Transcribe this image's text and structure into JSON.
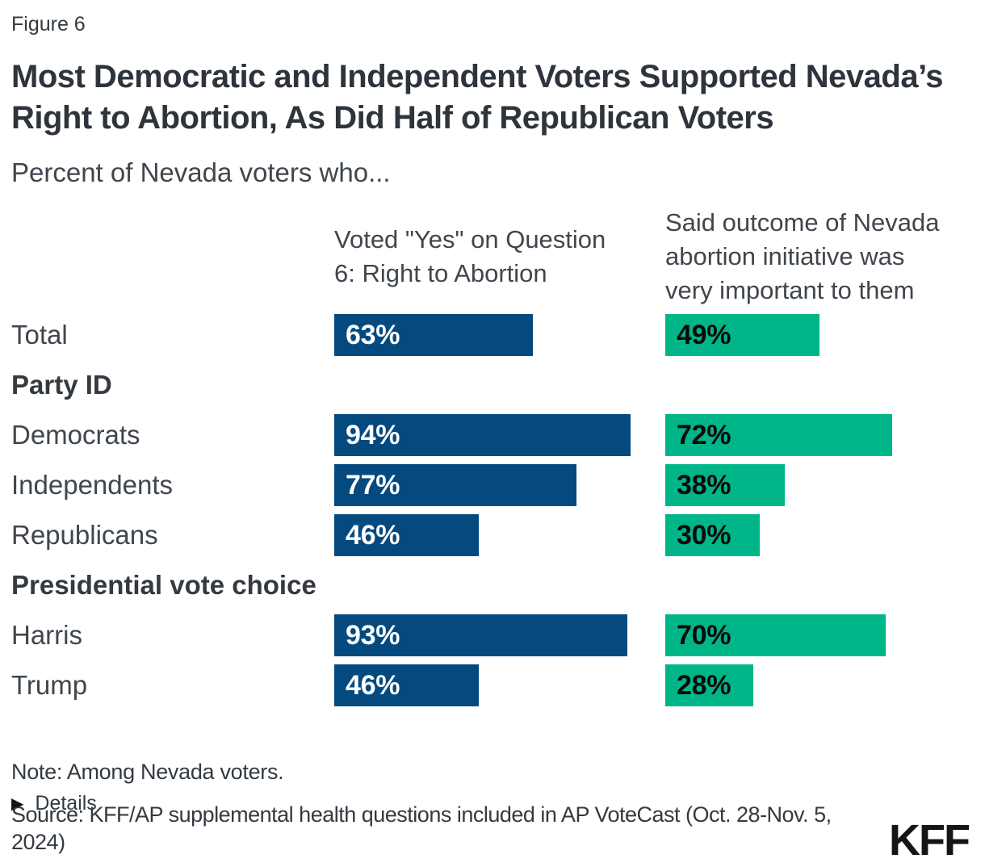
{
  "figure_label": "Figure 6",
  "title": "Most Democratic and Independent Voters Supported Nevada’s\nRight to Abortion, As Did Half of Republican Voters",
  "subtitle": "Percent of Nevada voters who...",
  "columns": [
    {
      "header": "Voted \"Yes\" on Question\n6: Right to Abortion",
      "color": "#044a7f",
      "text_color": "#ffffff"
    },
    {
      "header": "Said outcome of Nevada\nabortion initiative was\nvery important to them",
      "color": "#00b588",
      "text_color": "#0a0a0a"
    }
  ],
  "rows": [
    {
      "type": "data",
      "label": "Total",
      "col1_pct": 63,
      "col1_label": "63%",
      "col2_pct": 49,
      "col2_label": "49%"
    },
    {
      "type": "section",
      "label": "Party ID"
    },
    {
      "type": "data",
      "label": "Democrats",
      "col1_pct": 94,
      "col1_label": "94%",
      "col2_pct": 72,
      "col2_label": "72%"
    },
    {
      "type": "data",
      "label": "Independents",
      "col1_pct": 77,
      "col1_label": "77%",
      "col2_pct": 38,
      "col2_label": "38%"
    },
    {
      "type": "data",
      "label": "Republicans",
      "col1_pct": 46,
      "col1_label": "46%",
      "col2_pct": 30,
      "col2_label": "30%"
    },
    {
      "type": "section",
      "label": "Presidential vote choice"
    },
    {
      "type": "data",
      "label": "Harris",
      "col1_pct": 93,
      "col1_label": "93%",
      "col2_pct": 70,
      "col2_label": "70%"
    },
    {
      "type": "data",
      "label": "Trump",
      "col1_pct": 46,
      "col1_label": "46%",
      "col2_pct": 28,
      "col2_label": "28%"
    }
  ],
  "note": "Note: Among Nevada voters.",
  "details_icon": "▶",
  "details_label": "Details",
  "source": "Source: KFF/AP supplemental health questions included in AP VoteCast (Oct. 28-Nov. 5, 2024)",
  "logo": "KFF",
  "chart_data": {
    "type": "bar",
    "orientation": "horizontal",
    "title": "Most Democratic and Independent Voters Supported Nevada’s Right to Abortion, As Did Half of Republican Voters",
    "subtitle": "Percent of Nevada voters who...",
    "categories": [
      "Total",
      "Democrats",
      "Independents",
      "Republicans",
      "Harris",
      "Trump"
    ],
    "category_groups": [
      {
        "group": null,
        "categories": [
          "Total"
        ]
      },
      {
        "group": "Party ID",
        "categories": [
          "Democrats",
          "Independents",
          "Republicans"
        ]
      },
      {
        "group": "Presidential vote choice",
        "categories": [
          "Harris",
          "Trump"
        ]
      }
    ],
    "series": [
      {
        "name": "Voted \"Yes\" on Question 6: Right to Abortion",
        "color": "#044a7f",
        "values": [
          63,
          94,
          77,
          46,
          93,
          46
        ]
      },
      {
        "name": "Said outcome of Nevada abortion initiative was very important to them",
        "color": "#00b588",
        "values": [
          49,
          72,
          38,
          30,
          70,
          28
        ]
      }
    ],
    "xlim": [
      0,
      100
    ],
    "value_format": "percent",
    "data_labels": true,
    "grid": false,
    "axes_visible": false,
    "legend_position": "column-headers"
  }
}
